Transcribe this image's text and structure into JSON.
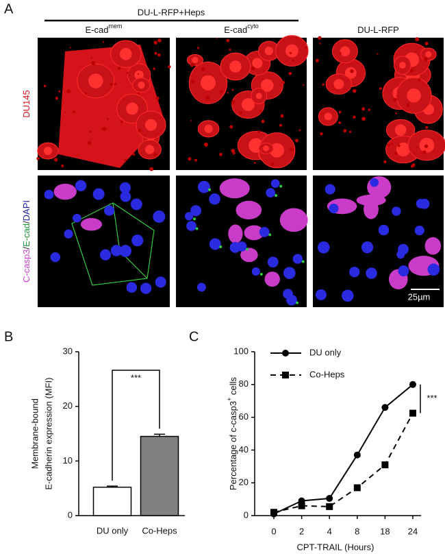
{
  "panel_a": {
    "label": "A",
    "group_label": "DU-L-RFP+Heps",
    "columns": [
      {
        "base": "E-cad",
        "sup": "mem"
      },
      {
        "base": "E-cad",
        "sup": "cyto"
      },
      {
        "base": "DU-L-RFP"
      }
    ],
    "row_labels": [
      {
        "parts": [
          {
            "text": "DU145",
            "color": "#e0141e"
          }
        ]
      },
      {
        "parts": [
          {
            "text": "C-casp3",
            "color": "#d83cd8"
          },
          {
            "text": "/",
            "color": "#222222"
          },
          {
            "text": "E-cad",
            "color": "#1f9a3a"
          },
          {
            "text": "/",
            "color": "#222222"
          },
          {
            "text": "DAPI",
            "color": "#1a1aa8"
          }
        ]
      }
    ],
    "scale_bar": "25µm"
  },
  "chart_data": [
    {
      "type": "bar",
      "panel_label": "B",
      "ylabel": [
        "Membrane-bound",
        "E-cadherin expression (MFI)"
      ],
      "categories": [
        "DU only",
        "Co-Heps"
      ],
      "values": [
        5.2,
        14.5
      ],
      "errors": [
        0.2,
        0.4
      ],
      "colors": [
        "#ffffff",
        "#808080"
      ],
      "ylim": [
        0,
        30
      ],
      "yticks": [
        0,
        10,
        20,
        30
      ],
      "annotation": "***"
    },
    {
      "type": "line",
      "panel_label": "C",
      "xlabel": "CPT-TRAIL (Hours)",
      "ylabel": {
        "before": "Percentage of c-casp3",
        "sup": "+",
        "after": " cells"
      },
      "categories": [
        "0",
        "2",
        "4",
        "8",
        "18",
        "24"
      ],
      "series": [
        {
          "name": "DU only",
          "color": "#000000",
          "marker": "circle",
          "dashed": false,
          "values": [
            1,
            9,
            10.5,
            37,
            66,
            80
          ]
        },
        {
          "name": "Co-Heps",
          "color": "#000000",
          "marker": "square",
          "dashed": true,
          "values": [
            2,
            6,
            5.5,
            17,
            31,
            62.5
          ]
        }
      ],
      "ylim": [
        0,
        100
      ],
      "yticks": [
        0,
        20,
        40,
        60,
        80,
        100
      ],
      "legend": "top-left",
      "annotation": "***"
    }
  ]
}
